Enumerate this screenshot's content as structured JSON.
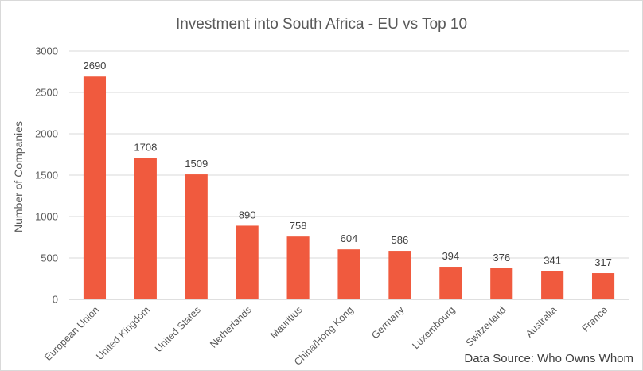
{
  "chart_data": {
    "type": "bar",
    "title": "Investment into South Africa - EU vs Top 10",
    "ylabel": "Number of Companies",
    "xlabel": "",
    "categories": [
      "European Union",
      "United Kingdom",
      "United States",
      "Netherlands",
      "Mauritius",
      "China/Hong Kong",
      "Germany",
      "Luxembourg",
      "Switzerland",
      "Australia",
      "France"
    ],
    "values": [
      2690,
      1708,
      1509,
      890,
      758,
      604,
      586,
      394,
      376,
      341,
      317
    ],
    "ylim": [
      0,
      3000
    ],
    "yticks": [
      0,
      500,
      1000,
      1500,
      2000,
      2500,
      3000
    ],
    "grid": true,
    "legend": "none",
    "bar_color": "#f05a3e",
    "source_note": "Data Source: Who Owns Whom"
  }
}
